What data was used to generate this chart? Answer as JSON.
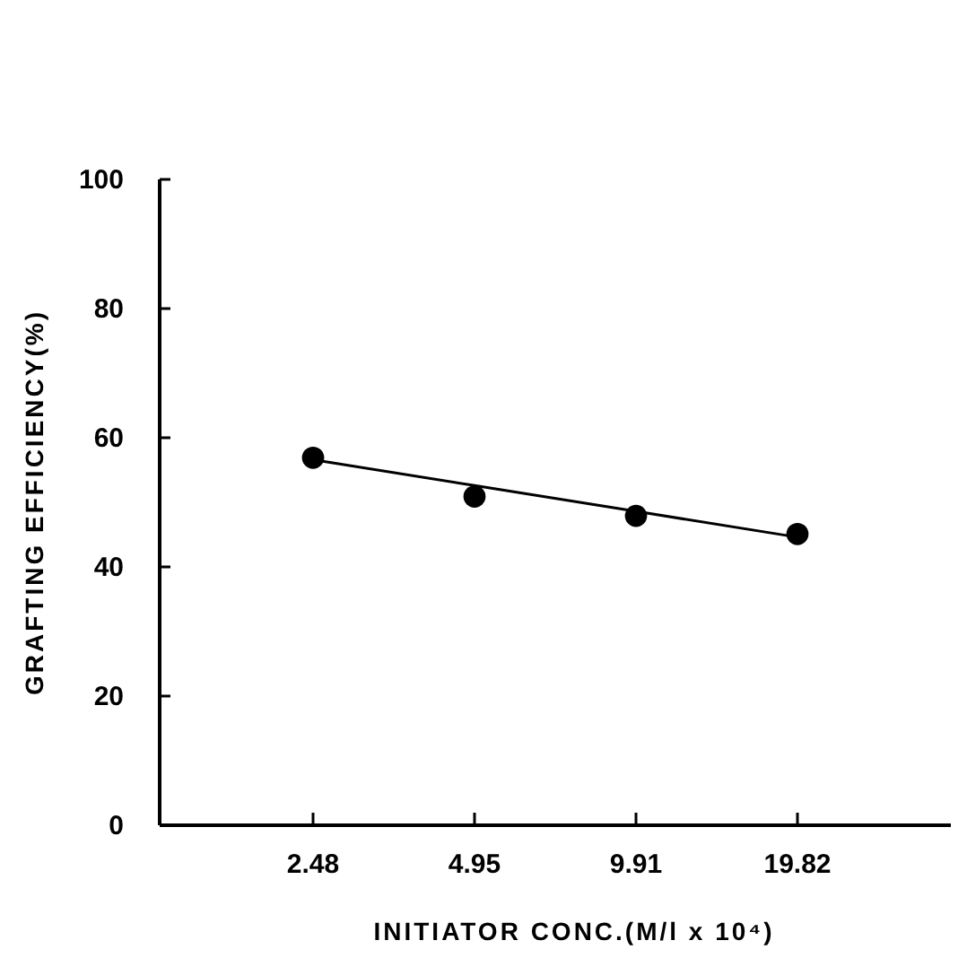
{
  "chart_data": {
    "type": "scatter",
    "xlabel": "INITIATOR   CONC.(M/l x 10⁴)",
    "ylabel": "GRAFTING   EFFICIENCY(%)",
    "categories": [
      "2.48",
      "4.95",
      "9.91",
      "19.82"
    ],
    "ylim": [
      0,
      100
    ],
    "yticks": [
      0,
      20,
      40,
      60,
      80,
      100
    ],
    "grid": false,
    "series": [
      {
        "color": "#000000",
        "marker": "circle",
        "values": [
          56.9,
          50.9,
          47.9,
          45.1
        ]
      },
      {
        "type": "line",
        "color": "#000000",
        "marker": "none",
        "line_style": "solid",
        "values": [
          56.6,
          52.6,
          48.6,
          44.6
        ]
      }
    ]
  }
}
